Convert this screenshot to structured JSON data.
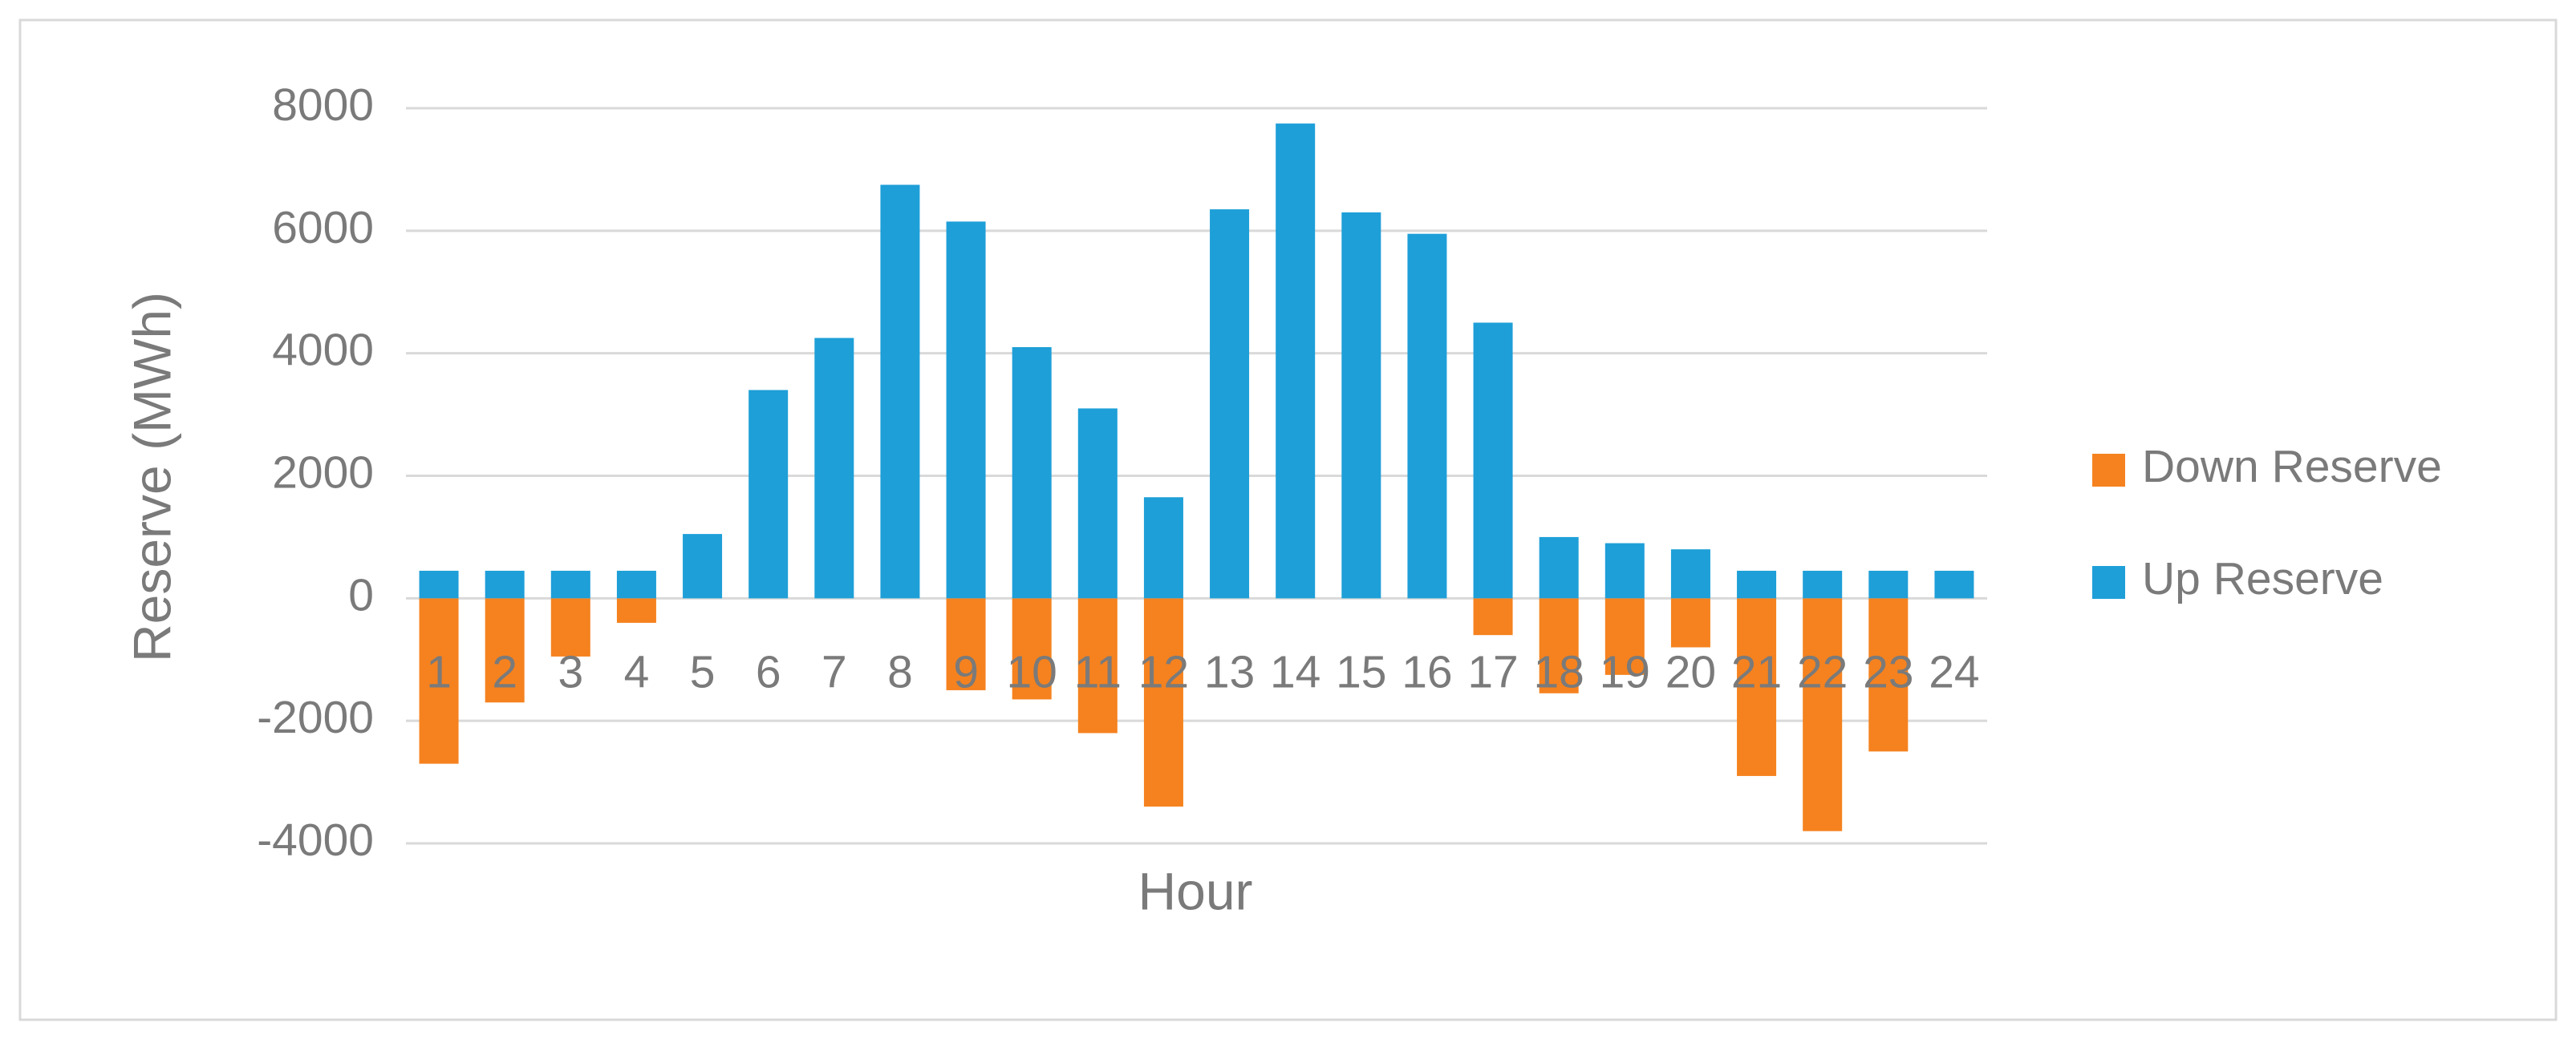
{
  "chart_data": {
    "type": "bar",
    "x_label": "Hour",
    "y_label": "Reserve (MWh)",
    "categories": [
      "1",
      "2",
      "3",
      "4",
      "5",
      "6",
      "7",
      "8",
      "9",
      "10",
      "11",
      "12",
      "13",
      "14",
      "15",
      "16",
      "17",
      "18",
      "19",
      "20",
      "21",
      "22",
      "23",
      "24"
    ],
    "series": [
      {
        "name": "Down Reserve",
        "color": "#f5821f",
        "values": [
          -2700,
          -1700,
          -950,
          -400,
          null,
          null,
          null,
          null,
          -1500,
          -1650,
          -2200,
          -3400,
          null,
          null,
          null,
          null,
          -600,
          -1550,
          -1250,
          -800,
          -2900,
          -3800,
          -2500,
          null
        ]
      },
      {
        "name": "Up Reserve",
        "color": "#1e9fd8",
        "values": [
          450,
          450,
          450,
          450,
          1050,
          3400,
          4250,
          6750,
          6150,
          4100,
          3100,
          1650,
          6350,
          7750,
          6300,
          5950,
          4500,
          1000,
          900,
          800,
          450,
          450,
          450,
          450
        ]
      }
    ],
    "ylim": [
      -4000,
      8000
    ],
    "yticks": [
      -4000,
      -2000,
      0,
      2000,
      4000,
      6000,
      8000
    ],
    "grid": true,
    "legend": "right"
  }
}
